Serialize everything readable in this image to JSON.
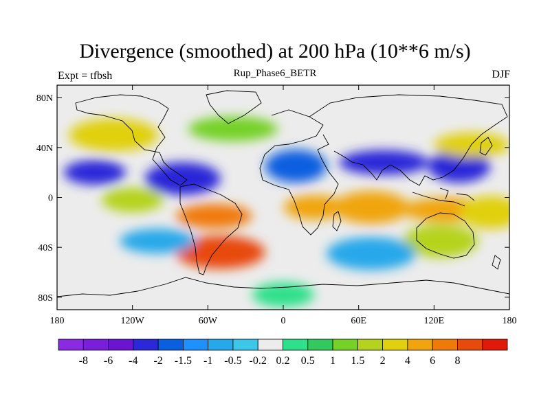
{
  "chart_data": {
    "type": "heatmap",
    "title": "Divergence (smoothed) at 200 hPa (10**6 m/s)",
    "left_string": "Expt = tfbsh",
    "center_string": "Rup_Phase6_BETR",
    "right_string": "DJF",
    "x_range": [
      -180,
      180
    ],
    "y_range": [
      -90,
      90
    ],
    "x_ticks": [
      {
        "value": -180,
        "label": "180"
      },
      {
        "value": -120,
        "label": "120W"
      },
      {
        "value": -60,
        "label": "60W"
      },
      {
        "value": 0,
        "label": "0"
      },
      {
        "value": 60,
        "label": "60E"
      },
      {
        "value": 120,
        "label": "120E"
      },
      {
        "value": 180,
        "label": "180"
      }
    ],
    "y_ticks": [
      {
        "value": 80,
        "label": "80N"
      },
      {
        "value": 40,
        "label": "40N"
      },
      {
        "value": 0,
        "label": "0"
      },
      {
        "value": -40,
        "label": "40S"
      },
      {
        "value": -80,
        "label": "80S"
      }
    ],
    "colorbar": {
      "colors": [
        "#8a2be2",
        "#7a1fd9",
        "#6a15d2",
        "#2a28d8",
        "#0a5fe0",
        "#1e90ff",
        "#27a8ea",
        "#3cc6e8",
        "#ececec",
        "#2ee08a",
        "#34c95e",
        "#75d128",
        "#b5d31e",
        "#e0d010",
        "#f0a50e",
        "#f07a08",
        "#e84a0c",
        "#e01a0a"
      ],
      "labels": [
        "-8",
        "-6",
        "-4",
        "-2",
        "-1.5",
        "-1",
        "-0.5",
        "-0.2",
        "0.2",
        "0.5",
        "1",
        "1.5",
        "2",
        "4",
        "6",
        "8"
      ]
    },
    "features": [
      {
        "name": "North Pacific subtropical convergence band",
        "lon": -150,
        "lat": 20,
        "value": -4
      },
      {
        "name": "Equatorial Atlantic convergence band",
        "lon": -80,
        "lat": 15,
        "value": -4
      },
      {
        "name": "Asian subtropical jet convergence",
        "lon": 80,
        "lat": 28,
        "value": -4
      },
      {
        "name": "Western Pacific convergence",
        "lon": 140,
        "lat": 25,
        "value": -4
      },
      {
        "name": "South America divergence maximum",
        "lon": -55,
        "lat": -15,
        "value": 6
      },
      {
        "name": "South Atlantic divergence",
        "lon": -50,
        "lat": -44,
        "value": 8
      },
      {
        "name": "Central Africa divergence",
        "lon": 25,
        "lat": -8,
        "value": 4
      },
      {
        "name": "Indian Ocean ITCZ divergence",
        "lon": 70,
        "lat": -8,
        "value": 4
      },
      {
        "name": "Maritime Continent divergence",
        "lon": 130,
        "lat": -10,
        "value": 4
      },
      {
        "name": "South Pacific convergence zone divergence",
        "lon": 165,
        "lat": -12,
        "value": 2
      },
      {
        "name": "North Pacific divergence",
        "lon": 150,
        "lat": 42,
        "value": 2
      },
      {
        "name": "Western North America divergence",
        "lon": -135,
        "lat": 50,
        "value": 2
      },
      {
        "name": "Eastern Pacific divergence",
        "lon": -120,
        "lat": -2,
        "value": 1.5
      },
      {
        "name": "Australia divergence",
        "lon": 125,
        "lat": -35,
        "value": 1.5
      },
      {
        "name": "North Atlantic divergence",
        "lon": -40,
        "lat": 55,
        "value": 1
      },
      {
        "name": "North Africa convergence",
        "lon": 10,
        "lat": 25,
        "value": -2
      },
      {
        "name": "Southern Ocean convergence",
        "lon": -100,
        "lat": -35,
        "value": -1
      },
      {
        "name": "South Indian convergence",
        "lon": 70,
        "lat": -45,
        "value": -1
      },
      {
        "name": "Antarctic neutral band",
        "lon": 0,
        "lat": -78,
        "value": 0
      }
    ]
  }
}
